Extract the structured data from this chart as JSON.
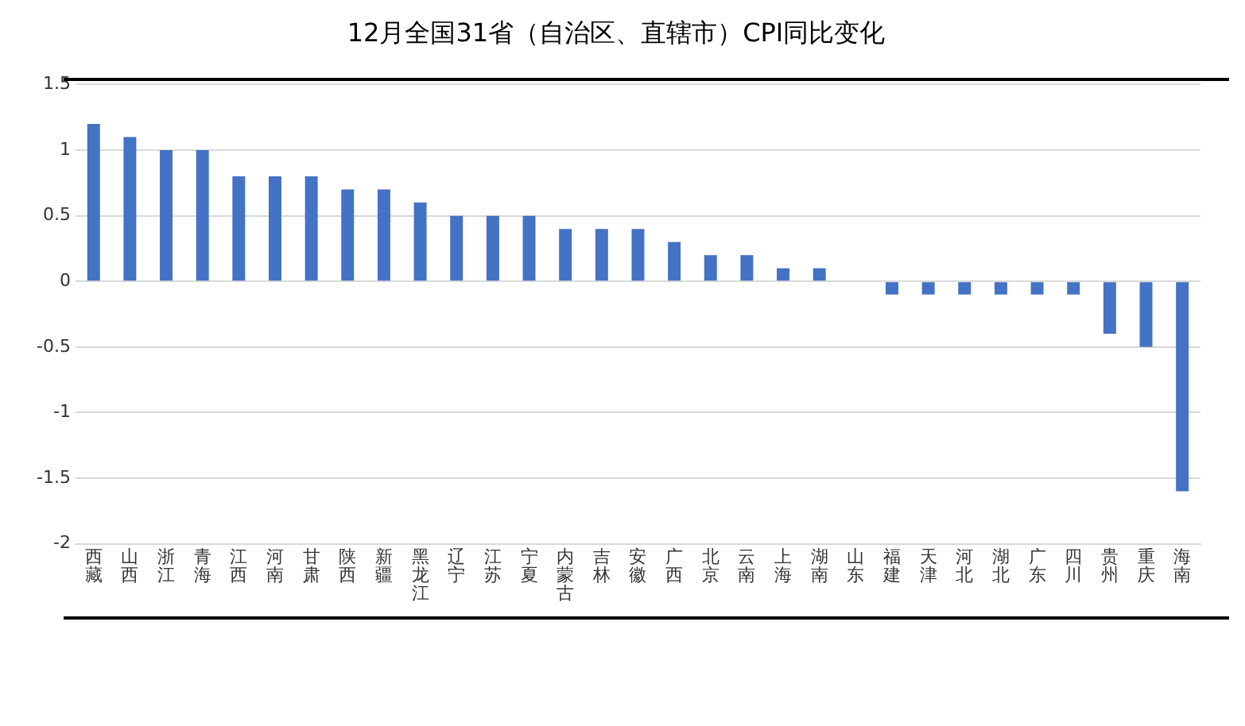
{
  "chart_data": {
    "type": "bar",
    "title": "12月全国31省（自治区、直辖市）CPI同比变化",
    "categories": [
      "西藏",
      "山西",
      "浙江",
      "青海",
      "江西",
      "河南",
      "甘肃",
      "陕西",
      "新疆",
      "黑龙江",
      "辽宁",
      "江苏",
      "宁夏",
      "内蒙古",
      "吉林",
      "安徽",
      "广西",
      "北京",
      "云南",
      "上海",
      "湖南",
      "山东",
      "福建",
      "天津",
      "河北",
      "湖北",
      "广东",
      "四川",
      "贵州",
      "重庆",
      "海南"
    ],
    "values": [
      1.2,
      1.1,
      1.0,
      1.0,
      0.8,
      0.8,
      0.8,
      0.7,
      0.7,
      0.6,
      0.5,
      0.5,
      0.5,
      0.4,
      0.4,
      0.4,
      0.3,
      0.2,
      0.2,
      0.1,
      0.1,
      0,
      -0.1,
      -0.1,
      -0.1,
      -0.1,
      -0.1,
      -0.1,
      -0.4,
      -0.5,
      -1.6
    ],
    "color": "#4472c4",
    "ylim": [
      -2,
      1.5
    ],
    "yticks": [
      -2,
      -1.5,
      -1,
      -0.5,
      0,
      0.5,
      1,
      1.5
    ],
    "grid": "y"
  }
}
